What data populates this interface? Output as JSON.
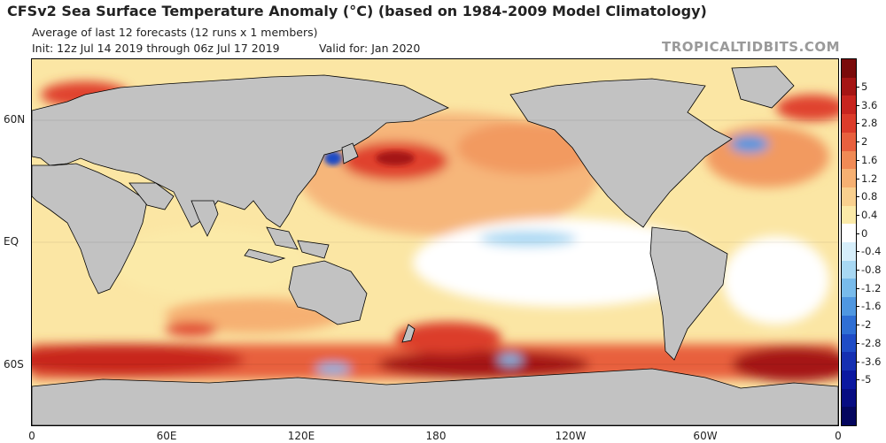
{
  "header": {
    "title": "CFSv2 Sea Surface Temperature Anomaly (°C) (based on 1984-2009 Model Climatology)",
    "subtitle": "Average of last 12 forecasts (12 runs x 1 members)",
    "init": "Init: 12z Jul 14 2019 through 06z Jul 17 2019",
    "valid": "Valid for: Jan 2020",
    "brand": "TROPICALTIDBITS.COM"
  },
  "map": {
    "lat_labels": [
      "60N",
      "EQ",
      "60S"
    ],
    "lon_labels": [
      "0",
      "60E",
      "120E",
      "180",
      "120W",
      "60W",
      "0"
    ]
  },
  "colorbar": {
    "labels": [
      "5",
      "3.6",
      "2.8",
      "2",
      "1.6",
      "1.2",
      "0.8",
      "0.4",
      "0",
      "-0.4",
      "-0.8",
      "-1.2",
      "-1.6",
      "-2",
      "-2.8",
      "-3.6",
      "-5"
    ],
    "colors": [
      "#7a0a0a",
      "#a51514",
      "#c8251f",
      "#dc3c2b",
      "#e8603e",
      "#f08a55",
      "#f6b072",
      "#f9d08e",
      "#fbeaa8",
      "#ffffff",
      "#d6eefa",
      "#a8d8f3",
      "#78bbeb",
      "#4f97e0",
      "#2f6fd4",
      "#1f4cc6",
      "#1530b2",
      "#0b18a0",
      "#070c82",
      "#04065e"
    ]
  }
}
